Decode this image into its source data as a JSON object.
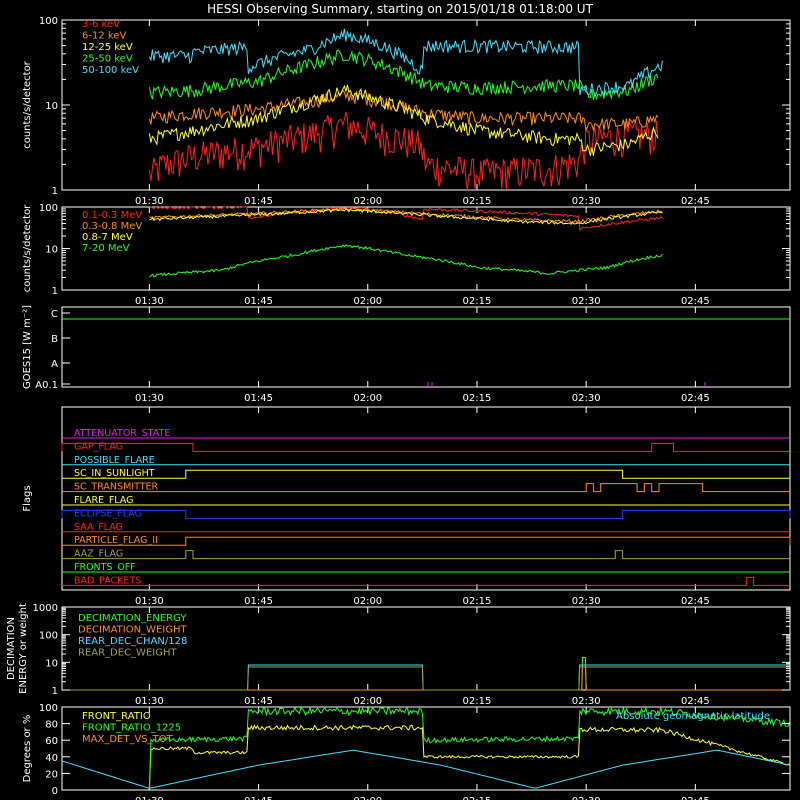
{
  "title": "HESSI Observing Summary, starting on 2015/01/18 01:18:00 UT",
  "time_axis": {
    "start": "01:18",
    "end": "02:58",
    "ticks": [
      "01:30",
      "01:45",
      "02:00",
      "02:15",
      "02:30",
      "02:45"
    ]
  },
  "colors": {
    "red": "#ff2020",
    "orange": "#ff8c1a",
    "yellow": "#ffff30",
    "green": "#20ff20",
    "cyan": "#40e0ff",
    "magenta": "#e020e0",
    "blue": "#2040ff",
    "olive": "#a0a040"
  },
  "chart_data": [
    {
      "type": "line",
      "id": "panel1",
      "ylabel": "counts/s/detector",
      "yscale": "log",
      "ylim": [
        1,
        100
      ],
      "yticks": [
        "1",
        "10",
        "100"
      ],
      "series": [
        {
          "name": "3-6 keV",
          "color": "#ff2020",
          "x": [
            "01:30",
            "01:32",
            "01:34",
            "01:36",
            "01:45",
            "01:52",
            "01:57",
            "02:02",
            "02:07",
            "02:08",
            "02:15",
            "02:25",
            "02:29",
            "02:30",
            "02:36",
            "02:40"
          ],
          "values": [
            1.5,
            2.0,
            2.2,
            2.5,
            3.2,
            4.5,
            6,
            4.5,
            3.5,
            2.0,
            1.6,
            1.8,
            2.2,
            3.8,
            4.5,
            4.5
          ]
        },
        {
          "name": "6-12 keV",
          "color": "#ff8c1a",
          "x": [
            "01:30",
            "01:36",
            "01:45",
            "01:52",
            "01:57",
            "02:02",
            "02:08",
            "02:15",
            "02:25",
            "02:29",
            "02:30",
            "02:36",
            "02:40"
          ],
          "values": [
            7,
            8,
            9,
            11,
            13,
            11,
            8,
            7,
            7,
            7,
            6,
            6,
            7
          ]
        },
        {
          "name": "12-25 keV",
          "color": "#ffff30",
          "x": [
            "01:30",
            "01:36",
            "01:45",
            "01:52",
            "01:57",
            "02:02",
            "02:08",
            "02:15",
            "02:25",
            "02:29",
            "02:30",
            "02:36",
            "02:40"
          ],
          "values": [
            4,
            5,
            7,
            11,
            15,
            11,
            7,
            5,
            4,
            4,
            3,
            3.5,
            5
          ]
        },
        {
          "name": "25-50 keV",
          "color": "#20ff20",
          "x": [
            "01:30",
            "01:36",
            "01:45",
            "01:52",
            "01:57",
            "02:02",
            "02:08",
            "02:15",
            "02:25",
            "02:29",
            "02:30",
            "02:36",
            "02:40"
          ],
          "values": [
            14,
            15,
            19,
            30,
            40,
            30,
            17,
            16,
            17,
            17,
            13,
            15,
            22
          ]
        },
        {
          "name": "50-100 keV",
          "color": "#40e0ff",
          "x": [
            "01:30",
            "01:35.9",
            "01:36",
            "01:43.5",
            "01:43.6",
            "01:52",
            "01:57",
            "02:02",
            "02:07.5",
            "02:07.6",
            "02:29",
            "02:29.1",
            "02:36",
            "02:40.5"
          ],
          "values": [
            38,
            38,
            42,
            48,
            28,
            45,
            68,
            50,
            25,
            50,
            48,
            15,
            17,
            30
          ]
        }
      ]
    },
    {
      "type": "line",
      "id": "panel2",
      "ylabel": "counts/s/detector",
      "yscale": "log",
      "ylim": [
        1,
        100
      ],
      "yticks": [
        "1",
        "10",
        "100"
      ],
      "series": [
        {
          "name": "0.1-0.3 MeV",
          "color": "#ff2020",
          "x": [
            "01:30",
            "01:43.5",
            "01:43.6",
            "01:52",
            "01:57",
            "02:02",
            "02:07.5",
            "02:07.6",
            "02:29",
            "02:29.1",
            "02:40.5"
          ],
          "values": [
            95,
            100,
            55,
            80,
            95,
            80,
            50,
            90,
            60,
            30,
            55
          ]
        },
        {
          "name": "0.3-0.8 MeV",
          "color": "#ff8c1a",
          "x": [
            "01:30",
            "01:45",
            "01:57",
            "02:10",
            "02:20",
            "02:29",
            "02:40.5"
          ],
          "values": [
            55,
            70,
            90,
            65,
            50,
            45,
            80
          ]
        },
        {
          "name": "0.8-7 MeV",
          "color": "#ffff30",
          "x": [
            "01:30",
            "01:45",
            "01:57",
            "02:10",
            "02:20",
            "02:29",
            "02:40.5"
          ],
          "values": [
            50,
            65,
            85,
            60,
            45,
            40,
            75
          ]
        },
        {
          "name": "7-20 MeV",
          "color": "#20ff20",
          "x": [
            "01:30",
            "01:40",
            "01:50",
            "01:57",
            "02:05",
            "02:15",
            "02:25",
            "02:33",
            "02:40.5"
          ],
          "values": [
            2.2,
            3,
            7,
            12,
            7,
            3.5,
            2.5,
            3.5,
            7
          ]
        }
      ]
    },
    {
      "type": "line",
      "id": "panel3",
      "ylabel": "GOES15 [W m⁻²]",
      "ylevels": [
        "A0.1",
        "A",
        "B",
        "C"
      ]
    },
    {
      "type": "step",
      "id": "panel4",
      "ylabel": "Flags",
      "flags": [
        {
          "name": "ATTENUATOR_STATE",
          "color": "#e020e0",
          "on": []
        },
        {
          "name": "GAP_FLAG",
          "color": "#ff2020",
          "on": [
            [
              "01:18",
              "01:36"
            ],
            [
              "02:39",
              "02:42"
            ]
          ]
        },
        {
          "name": "POSSIBLE_FLARE",
          "color": "#40e0ff",
          "on": []
        },
        {
          "name": "SC_IN_SUNLIGHT",
          "color": "#ffff30",
          "on": [
            [
              "01:35",
              "02:35"
            ]
          ]
        },
        {
          "name": "SC_TRANSMITTER",
          "color": "#ff8c1a",
          "on": [
            [
              "02:30",
              "02:31"
            ],
            [
              "02:32",
              "02:37"
            ],
            [
              "02:38",
              "02:39"
            ],
            [
              "02:40",
              "02:46"
            ]
          ]
        },
        {
          "name": "FLARE_FLAG",
          "color": "#ffff30",
          "on": []
        },
        {
          "name": "ECLIPSE_FLAG",
          "color": "#2040ff",
          "on": [
            [
              "01:18",
              "01:35"
            ],
            [
              "02:35",
              "02:58"
            ]
          ]
        },
        {
          "name": "SAA_FLAG",
          "color": "#ff2020",
          "on": []
        },
        {
          "name": "PARTICLE_FLAG_II",
          "color": "#ff8c1a",
          "on": [
            [
              "01:35",
              "02:58"
            ]
          ]
        },
        {
          "name": "AAZ_FLAG",
          "color": "#a0a040",
          "on": [
            [
              "01:35",
              "01:36"
            ],
            [
              "02:34",
              "02:35"
            ]
          ]
        },
        {
          "name": "FRONTS_OFF",
          "color": "#20ff20",
          "on": []
        },
        {
          "name": "BAD_PACKETS",
          "color": "#ff2020",
          "on": [
            [
              "02:52",
              "02:53"
            ]
          ]
        }
      ]
    },
    {
      "type": "step",
      "id": "panel5",
      "ylabel": "DECIMATION ENERGY or weight",
      "yscale": "log",
      "ylim": [
        1,
        1000
      ],
      "yticks": [
        "1",
        "10",
        "100",
        "1000"
      ],
      "series": [
        {
          "name": "DECIMATION_ENERGY",
          "color": "#20ff20",
          "x": [
            "01:18",
            "02:29.4",
            "02:29.5",
            "02:29.9",
            "02:30",
            "02:58"
          ],
          "values": [
            1,
            1,
            15,
            15,
            1,
            1
          ]
        },
        {
          "name": "DECIMATION_WEIGHT",
          "color": "#ff8c1a",
          "x": [
            "01:18",
            "02:29.4",
            "02:29.5",
            "02:29.9",
            "02:30",
            "02:58"
          ],
          "values": [
            1,
            1,
            8,
            8,
            1,
            1
          ]
        },
        {
          "name": "REAR_DEC_CHAN/128",
          "color": "#40e0ff",
          "x": [
            "01:18",
            "01:43.5",
            "01:43.6",
            "02:07.5",
            "02:07.6",
            "02:29",
            "02:29.1",
            "02:58"
          ],
          "values": [
            1,
            1,
            8,
            8,
            1,
            1,
            8,
            8
          ]
        },
        {
          "name": "REAR_DEC_WEIGHT",
          "color": "#a0a040",
          "x": [
            "01:18",
            "01:43.5",
            "01:43.6",
            "02:07.5",
            "02:07.6",
            "02:29",
            "02:29.1",
            "02:58"
          ],
          "values": [
            1,
            1,
            8,
            8,
            1,
            1,
            8,
            8
          ]
        }
      ]
    },
    {
      "type": "line",
      "id": "panel6",
      "ylabel": "Degrees or %",
      "ylim": [
        0,
        100
      ],
      "yticks": [
        "0",
        "20",
        "40",
        "60",
        "80",
        "100"
      ],
      "annotation": "Absolute geomagnetic latitude",
      "series": [
        {
          "name": "FRONT_RATIO",
          "color": "#ffff30",
          "x": [
            "01:30",
            "01:30.2",
            "01:36",
            "01:36.1",
            "01:43.5",
            "01:43.6",
            "02:07.5",
            "02:07.6",
            "02:29",
            "02:29.1",
            "02:40.5",
            "02:58"
          ],
          "values": [
            0,
            50,
            50,
            45,
            45,
            75,
            75,
            40,
            40,
            73,
            72,
            30
          ]
        },
        {
          "name": "FRONT_RATIO_1225",
          "color": "#20ff20",
          "x": [
            "01:30",
            "01:30.2",
            "01:43.5",
            "01:43.6",
            "02:07.5",
            "02:07.6",
            "02:29",
            "02:29.1",
            "02:40.5",
            "02:58"
          ],
          "values": [
            0,
            60,
            62,
            95,
            95,
            60,
            62,
            95,
            95,
            80
          ]
        },
        {
          "name": "MAX_DET_VS_TOT",
          "color": "#ff8c1a",
          "x": [],
          "values": []
        },
        {
          "name": "Absolute geomagnetic latitude",
          "color": "#40e0ff",
          "x": [
            "01:18",
            "01:30",
            "01:45",
            "01:58",
            "02:10",
            "02:23",
            "02:35",
            "02:48",
            "02:58"
          ],
          "values": [
            35,
            2,
            30,
            48,
            30,
            2,
            30,
            48,
            30
          ]
        }
      ]
    }
  ]
}
